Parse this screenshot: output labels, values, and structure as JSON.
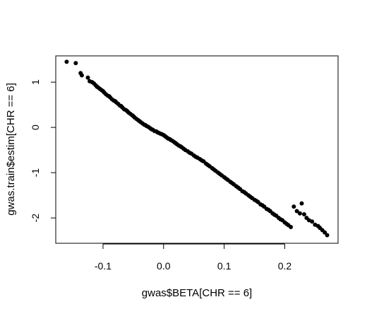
{
  "chart_data": {
    "type": "scatter",
    "title": "",
    "xlabel": "gwas$BETA[CHR == 6]",
    "ylabel": "gwas.train$estim[CHR == 6]",
    "xlim": [
      -0.178,
      0.288
    ],
    "ylim": [
      -2.56,
      1.58
    ],
    "xticks": [
      -0.1,
      0.0,
      0.1,
      0.2
    ],
    "xtick_labels": [
      "-0.1",
      "0.0",
      "0.1",
      "0.2"
    ],
    "yticks": [
      1,
      0,
      -1,
      -2
    ],
    "ytick_labels": [
      "1",
      "0",
      "-1",
      "-2"
    ],
    "grid": false,
    "legend": "none",
    "marker_color": "#000000",
    "series": [
      {
        "x": [
          -0.16,
          -0.145,
          -0.137,
          -0.135,
          -0.125,
          -0.122,
          -0.118,
          -0.115,
          -0.112,
          -0.11,
          -0.108,
          -0.105,
          -0.102,
          -0.1,
          -0.098,
          -0.095,
          -0.092,
          -0.09,
          -0.088,
          -0.085,
          -0.082,
          -0.08,
          -0.078,
          -0.075,
          -0.072,
          -0.07,
          -0.068,
          -0.065,
          -0.062,
          -0.06,
          -0.058,
          -0.055,
          -0.052,
          -0.05,
          -0.048,
          -0.045,
          -0.042,
          -0.04,
          -0.038,
          -0.035,
          -0.032,
          -0.03,
          -0.028,
          -0.025,
          -0.022,
          -0.02,
          -0.018,
          -0.015,
          -0.012,
          -0.01,
          -0.008,
          -0.005,
          -0.003,
          0.0,
          0.002,
          0.004,
          0.006,
          0.008,
          0.01,
          0.012,
          0.015,
          0.018,
          0.02,
          0.022,
          0.025,
          0.028,
          0.03,
          0.033,
          0.036,
          0.04,
          0.043,
          0.046,
          0.05,
          0.053,
          0.056,
          0.06,
          0.063,
          0.066,
          0.07,
          0.073,
          0.076,
          0.08,
          0.083,
          0.086,
          0.09,
          0.093,
          0.096,
          0.1,
          0.103,
          0.106,
          0.11,
          0.113,
          0.116,
          0.12,
          0.123,
          0.126,
          0.13,
          0.133,
          0.136,
          0.14,
          0.143,
          0.146,
          0.15,
          0.153,
          0.156,
          0.16,
          0.163,
          0.166,
          0.17,
          0.173,
          0.176,
          0.18,
          0.183,
          0.186,
          0.19,
          0.193,
          0.196,
          0.2,
          0.203,
          0.206,
          0.21,
          0.215,
          0.22,
          0.225,
          0.228,
          0.232,
          0.236,
          0.24,
          0.245,
          0.25,
          0.255,
          0.258,
          0.262,
          0.266,
          0.27
        ],
        "y": [
          1.45,
          1.42,
          1.2,
          1.15,
          1.1,
          1.02,
          1.0,
          0.97,
          0.93,
          0.9,
          0.88,
          0.85,
          0.82,
          0.8,
          0.77,
          0.73,
          0.7,
          0.69,
          0.66,
          0.62,
          0.59,
          0.58,
          0.55,
          0.52,
          0.48,
          0.47,
          0.44,
          0.4,
          0.38,
          0.36,
          0.33,
          0.3,
          0.27,
          0.25,
          0.22,
          0.19,
          0.16,
          0.14,
          0.12,
          0.09,
          0.06,
          0.05,
          0.03,
          0.01,
          -0.02,
          -0.04,
          -0.05,
          -0.08,
          -0.09,
          -0.11,
          -0.12,
          -0.14,
          -0.15,
          -0.17,
          -0.19,
          -0.21,
          -0.23,
          -0.25,
          -0.26,
          -0.28,
          -0.3,
          -0.33,
          -0.35,
          -0.37,
          -0.4,
          -0.42,
          -0.44,
          -0.47,
          -0.5,
          -0.53,
          -0.56,
          -0.58,
          -0.62,
          -0.65,
          -0.67,
          -0.7,
          -0.73,
          -0.75,
          -0.8,
          -0.83,
          -0.86,
          -0.9,
          -0.93,
          -0.96,
          -1.0,
          -1.03,
          -1.06,
          -1.1,
          -1.13,
          -1.16,
          -1.2,
          -1.23,
          -1.26,
          -1.3,
          -1.33,
          -1.36,
          -1.41,
          -1.43,
          -1.46,
          -1.5,
          -1.53,
          -1.56,
          -1.6,
          -1.62,
          -1.65,
          -1.7,
          -1.72,
          -1.75,
          -1.8,
          -1.82,
          -1.85,
          -1.9,
          -1.93,
          -1.95,
          -2.0,
          -2.03,
          -2.05,
          -2.1,
          -2.13,
          -2.16,
          -2.2,
          -1.75,
          -1.85,
          -1.9,
          -1.68,
          -1.92,
          -2.0,
          -2.05,
          -2.08,
          -2.15,
          -2.18,
          -2.22,
          -2.27,
          -2.32,
          -2.38
        ]
      }
    ]
  }
}
